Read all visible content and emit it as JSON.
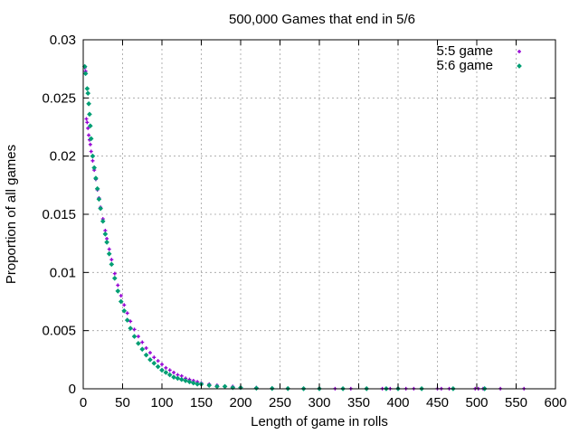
{
  "chart_data": {
    "type": "scatter",
    "title": "500,000 Games that end in 5/6",
    "xlabel": "Length of game in rolls",
    "ylabel": "Proportion of all games",
    "xlim": [
      0,
      600
    ],
    "ylim": [
      0,
      0.03
    ],
    "xticks": [
      0,
      50,
      100,
      150,
      200,
      250,
      300,
      350,
      400,
      450,
      500,
      550,
      600
    ],
    "yticks": [
      0,
      0.005,
      0.01,
      0.015,
      0.02,
      0.025,
      0.03
    ],
    "xtick_labels": [
      "0",
      "50",
      "100",
      "150",
      "200",
      "250",
      "300",
      "350",
      "400",
      "450",
      "500",
      "550",
      "600"
    ],
    "ytick_labels": [
      "0",
      "0.005",
      "0.01",
      "0.015",
      "0.02",
      "0.025",
      "0.03"
    ],
    "grid": true,
    "legend_position": "top-right",
    "series": [
      {
        "name": "5:5 game",
        "color": "#9400d3",
        "marker": "plus",
        "points": [
          [
            2,
            0.0276
          ],
          [
            3,
            0.0273
          ],
          [
            4,
            0.0232
          ],
          [
            5,
            0.0229
          ],
          [
            6,
            0.0224
          ],
          [
            7,
            0.0218
          ],
          [
            8,
            0.0214
          ],
          [
            9,
            0.021
          ],
          [
            10,
            0.0204
          ],
          [
            12,
            0.0196
          ],
          [
            14,
            0.0188
          ],
          [
            16,
            0.018
          ],
          [
            18,
            0.0171
          ],
          [
            20,
            0.0164
          ],
          [
            22,
            0.0156
          ],
          [
            25,
            0.0146
          ],
          [
            28,
            0.0136
          ],
          [
            30,
            0.0129
          ],
          [
            33,
            0.012
          ],
          [
            36,
            0.0111
          ],
          [
            40,
            0.0099
          ],
          [
            44,
            0.0089
          ],
          [
            48,
            0.008
          ],
          [
            52,
            0.0072
          ],
          [
            56,
            0.0065
          ],
          [
            60,
            0.0058
          ],
          [
            65,
            0.0051
          ],
          [
            70,
            0.0045
          ],
          [
            75,
            0.004
          ],
          [
            80,
            0.0035
          ],
          [
            85,
            0.0031
          ],
          [
            90,
            0.0027
          ],
          [
            95,
            0.0024
          ],
          [
            100,
            0.0021
          ],
          [
            105,
            0.0018
          ],
          [
            110,
            0.0016
          ],
          [
            115,
            0.0014
          ],
          [
            120,
            0.0012
          ],
          [
            125,
            0.0011
          ],
          [
            130,
            0.0009
          ],
          [
            135,
            0.0008
          ],
          [
            140,
            0.0007
          ],
          [
            145,
            0.0006
          ],
          [
            150,
            0.0005
          ],
          [
            160,
            0.0004
          ],
          [
            170,
            0.0003
          ],
          [
            180,
            0.0002
          ],
          [
            190,
            0.0002
          ],
          [
            200,
            0.0001
          ],
          [
            220,
            0.0001
          ],
          [
            240,
            5e-05
          ],
          [
            260,
            3e-05
          ],
          [
            280,
            2e-05
          ],
          [
            300,
            1e-05
          ],
          [
            320,
            1e-05
          ],
          [
            340,
            1e-05
          ],
          [
            360,
            1e-05
          ],
          [
            380,
            1e-05
          ],
          [
            390,
            1e-05
          ],
          [
            410,
            1e-05
          ],
          [
            420,
            1e-05
          ],
          [
            450,
            1e-05
          ],
          [
            455,
            1e-05
          ],
          [
            465,
            1e-05
          ],
          [
            498,
            1e-05
          ],
          [
            502,
            1e-05
          ],
          [
            508,
            1e-05
          ],
          [
            530,
            1e-05
          ],
          [
            560,
            1e-05
          ]
        ]
      },
      {
        "name": "5:6 game",
        "color": "#009e73",
        "marker": "diamond",
        "points": [
          [
            2,
            0.0277
          ],
          [
            3,
            0.0271
          ],
          [
            5,
            0.0258
          ],
          [
            6,
            0.0254
          ],
          [
            7,
            0.0245
          ],
          [
            8,
            0.0236
          ],
          [
            9,
            0.0226
          ],
          [
            10,
            0.0215
          ],
          [
            12,
            0.02
          ],
          [
            14,
            0.019
          ],
          [
            16,
            0.0181
          ],
          [
            18,
            0.0172
          ],
          [
            20,
            0.0163
          ],
          [
            22,
            0.0155
          ],
          [
            25,
            0.0144
          ],
          [
            28,
            0.0133
          ],
          [
            30,
            0.0126
          ],
          [
            33,
            0.0116
          ],
          [
            36,
            0.0107
          ],
          [
            40,
            0.0095
          ],
          [
            44,
            0.0084
          ],
          [
            48,
            0.0075
          ],
          [
            52,
            0.0067
          ],
          [
            56,
            0.0059
          ],
          [
            60,
            0.0052
          ],
          [
            65,
            0.0045
          ],
          [
            70,
            0.0039
          ],
          [
            75,
            0.0034
          ],
          [
            80,
            0.0029
          ],
          [
            85,
            0.0025
          ],
          [
            90,
            0.0022
          ],
          [
            95,
            0.0019
          ],
          [
            100,
            0.0016
          ],
          [
            105,
            0.0014
          ],
          [
            110,
            0.0012
          ],
          [
            115,
            0.001
          ],
          [
            120,
            0.0009
          ],
          [
            125,
            0.0008
          ],
          [
            130,
            0.0007
          ],
          [
            135,
            0.0006
          ],
          [
            140,
            0.0005
          ],
          [
            145,
            0.0004
          ],
          [
            150,
            0.0004
          ],
          [
            160,
            0.0003
          ],
          [
            170,
            0.0002
          ],
          [
            180,
            0.0002
          ],
          [
            190,
            0.0001
          ],
          [
            200,
            0.0001
          ],
          [
            220,
            5e-05
          ],
          [
            240,
            3e-05
          ],
          [
            260,
            2e-05
          ],
          [
            280,
            1e-05
          ],
          [
            300,
            1e-05
          ],
          [
            330,
            1e-05
          ],
          [
            360,
            1e-05
          ],
          [
            385,
            1e-05
          ],
          [
            400,
            1e-05
          ],
          [
            430,
            1e-05
          ],
          [
            470,
            1e-05
          ],
          [
            510,
            1e-05
          ]
        ]
      }
    ]
  }
}
